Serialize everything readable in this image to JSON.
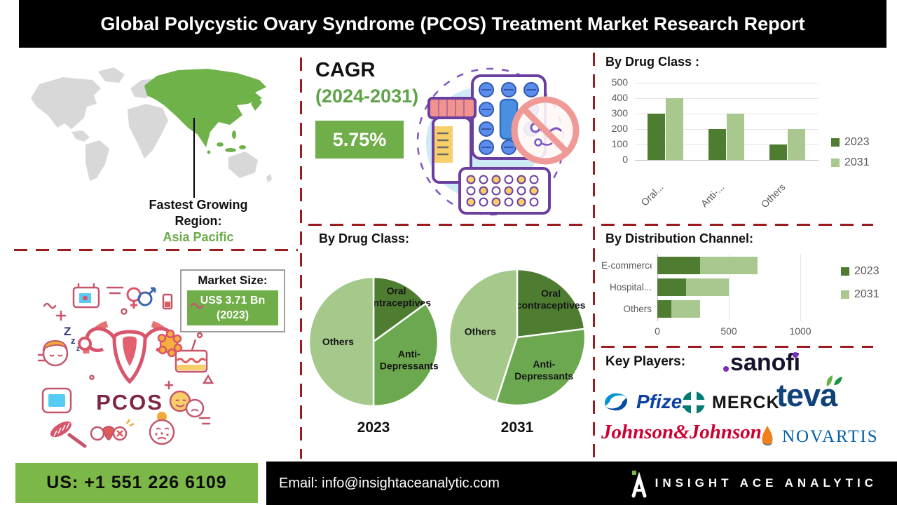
{
  "title": "Global Polycystic Ovary Syndrome (PCOS) Treatment Market Research Report",
  "region": {
    "line1": "Fastest Growing",
    "line2": "Region:",
    "value": "Asia Pacific"
  },
  "cagr": {
    "label": "CAGR",
    "period": "(2024-2031)",
    "value": "5.75%"
  },
  "market_size": {
    "label": "Market Size:",
    "value": "US$ 3.71 Bn",
    "year": "(2023)"
  },
  "pcos_badge": "PCOS",
  "chart_data": [
    {
      "id": "drug_class_bar",
      "type": "bar",
      "title": "By Drug Class :",
      "categories": [
        "Oral...",
        "Anti-...",
        "Others"
      ],
      "series": [
        {
          "name": "2023",
          "values": [
            300,
            200,
            100
          ]
        },
        {
          "name": "2031",
          "values": [
            400,
            300,
            200
          ]
        }
      ],
      "ylim": [
        0,
        500
      ],
      "ytick_step": 100,
      "grid": true,
      "legend_position": "right"
    },
    {
      "id": "drug_class_pie_2023",
      "type": "pie",
      "title": "By Drug Class:",
      "year_label": "2023",
      "labels": [
        "Oral contraceptives",
        "Anti-Depressants",
        "Others"
      ],
      "label_lines": [
        [
          "Oral",
          "contraceptives"
        ],
        [
          "Anti-",
          "Depressants"
        ],
        [
          "Others"
        ]
      ],
      "label_radius": [
        0.78,
        0.62,
        0.55
      ],
      "values": [
        15,
        35,
        50
      ]
    },
    {
      "id": "drug_class_pie_2031",
      "type": "pie",
      "title": "By Drug Class:",
      "year_label": "2031",
      "labels": [
        "Oral contraceptives",
        "Anti-Depressants",
        "Others"
      ],
      "label_lines": [
        [
          "Oral",
          "contraceptives"
        ],
        [
          "Anti-",
          "Depressants"
        ],
        [
          "Others"
        ]
      ],
      "label_radius": [
        0.75,
        0.62,
        0.55
      ],
      "values": [
        23,
        32,
        45
      ]
    },
    {
      "id": "distribution_stacked",
      "type": "bar",
      "orientation": "horizontal-stacked",
      "title": "By Distribution Channel:",
      "categories": [
        "E-commerce",
        "Hospital...",
        "Others"
      ],
      "series": [
        {
          "name": "2023",
          "values": [
            300,
            200,
            100
          ]
        },
        {
          "name": "2031",
          "values": [
            400,
            300,
            200
          ]
        }
      ],
      "xlim": [
        0,
        1400
      ],
      "xticks": [
        0,
        500,
        1000
      ],
      "grid": true,
      "legend_position": "right"
    }
  ],
  "key_players": {
    "label": "Key Players:",
    "logos": {
      "sanofi": "sanofi",
      "pfizer": "Pfizer",
      "merck": "MERCK",
      "teva": "teva",
      "jnj": "Johnson&Johnson",
      "novartis": "NOVARTIS"
    }
  },
  "footer": {
    "phone": "US: +1 551 226 6109",
    "email": "Email: info@insightaceanalytic.com",
    "brand": "INSIGHT ACE ANALYTIC"
  },
  "colors": {
    "accent_green": "#6AAB47",
    "box_green": "#6FAE49",
    "footer_green": "#7CB848",
    "map_green": "#6FB24A",
    "dash_red": "#9C1B1E",
    "axis_text": "#595959",
    "series": [
      "#4E7D32",
      "#A9C88F"
    ],
    "pie": [
      "#4E7D32",
      "#6BA84F",
      "#A5C88B"
    ]
  }
}
